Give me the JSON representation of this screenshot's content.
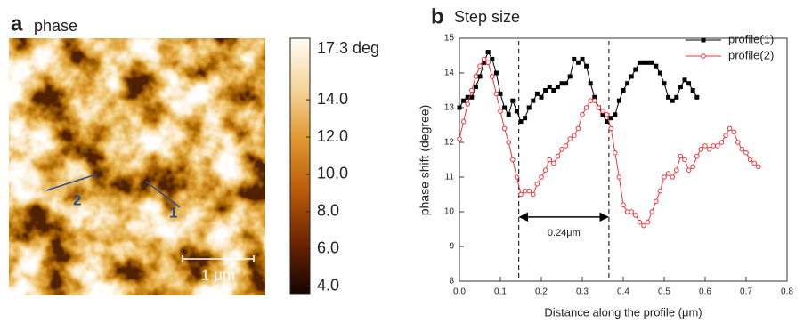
{
  "chart_data": [
    {
      "type": "image",
      "panel_label": "a",
      "title": "phase",
      "colormap": [
        "#160400",
        "#6e2400",
        "#b85a08",
        "#e0962e",
        "#f5d49a",
        "#fffdf5"
      ],
      "clim": [
        3.6,
        17.3
      ],
      "cticks": [
        {
          "value": 17.3,
          "label": "17.3 deg"
        },
        {
          "value": 14,
          "label": "14.0"
        },
        {
          "value": 12,
          "label": "12.0"
        },
        {
          "value": 10,
          "label": "10.0"
        },
        {
          "value": 8,
          "label": "8.0"
        },
        {
          "value": 6,
          "label": "6.0"
        },
        {
          "value": 4,
          "label": "4.0"
        }
      ],
      "annotations": [
        "1",
        "2"
      ],
      "scale_bar": "1 μm"
    },
    {
      "type": "line",
      "panel_label": "b",
      "title": "Step size",
      "x_label": "Distance along the profile (μm)",
      "y_label": "phase shift (degree)",
      "xlim": [
        0,
        0.8
      ],
      "ylim": [
        8,
        15
      ],
      "xticks": [
        {
          "value": 0,
          "label": "0.0"
        },
        0.1,
        0.2,
        0.3,
        0.4,
        0.5,
        0.6,
        0.7,
        0.8
      ],
      "yticks": [
        8,
        9,
        10,
        11,
        12,
        13,
        14,
        15
      ],
      "vlines": [
        0.145,
        0.365
      ],
      "annotation": "0.24μm",
      "legend": "upper right",
      "series": [
        {
          "name": "profile(1)",
          "color": "#000000",
          "marker": "square",
          "x": [
            0,
            0.01,
            0.02,
            0.03,
            0.04,
            0.05,
            0.06,
            0.07,
            0.08,
            0.09,
            0.1,
            0.11,
            0.12,
            0.13,
            0.14,
            0.15,
            0.16,
            0.17,
            0.18,
            0.19,
            0.2,
            0.21,
            0.22,
            0.23,
            0.24,
            0.25,
            0.26,
            0.27,
            0.28,
            0.29,
            0.3,
            0.31,
            0.32,
            0.33,
            0.34,
            0.35,
            0.36,
            0.37,
            0.38,
            0.39,
            0.4,
            0.41,
            0.42,
            0.43,
            0.44,
            0.45,
            0.46,
            0.47,
            0.48,
            0.49,
            0.5,
            0.51,
            0.52,
            0.53,
            0.54,
            0.55,
            0.56,
            0.57,
            0.58
          ],
          "values": [
            13.0,
            13.2,
            13.3,
            13.3,
            13.6,
            13.9,
            14.3,
            14.6,
            14.4,
            14.0,
            13.4,
            13.0,
            12.8,
            13.2,
            12.9,
            12.6,
            12.7,
            13.0,
            13.2,
            13.4,
            13.3,
            13.5,
            13.6,
            13.5,
            13.6,
            13.7,
            13.7,
            13.9,
            14.4,
            14.3,
            14.4,
            14.2,
            13.7,
            13.3,
            13.0,
            12.8,
            12.6,
            12.7,
            12.8,
            13.2,
            13.5,
            13.7,
            13.9,
            14.1,
            14.3,
            14.3,
            14.3,
            14.3,
            14.2,
            14.0,
            13.7,
            13.3,
            13.2,
            13.3,
            13.6,
            13.8,
            13.7,
            13.5,
            13.3
          ]
        },
        {
          "name": "profile(2)",
          "color": "#e8383d",
          "marker": "circle",
          "x": [
            0,
            0.01,
            0.02,
            0.03,
            0.04,
            0.05,
            0.06,
            0.07,
            0.08,
            0.09,
            0.1,
            0.11,
            0.12,
            0.13,
            0.14,
            0.15,
            0.16,
            0.17,
            0.18,
            0.19,
            0.2,
            0.21,
            0.22,
            0.23,
            0.24,
            0.25,
            0.26,
            0.27,
            0.28,
            0.29,
            0.3,
            0.31,
            0.32,
            0.33,
            0.34,
            0.35,
            0.36,
            0.37,
            0.38,
            0.39,
            0.4,
            0.41,
            0.42,
            0.43,
            0.44,
            0.45,
            0.46,
            0.47,
            0.48,
            0.49,
            0.5,
            0.51,
            0.52,
            0.53,
            0.54,
            0.55,
            0.56,
            0.57,
            0.58,
            0.59,
            0.6,
            0.61,
            0.62,
            0.63,
            0.64,
            0.65,
            0.66,
            0.67,
            0.68,
            0.69,
            0.7,
            0.71,
            0.72,
            0.73
          ],
          "values": [
            12.1,
            12.6,
            13.1,
            13.5,
            13.9,
            14.2,
            14.4,
            14.3,
            13.9,
            13.4,
            12.9,
            12.4,
            12.0,
            11.5,
            11.0,
            10.5,
            10.6,
            10.6,
            10.5,
            10.8,
            11.0,
            11.2,
            11.5,
            11.4,
            11.6,
            11.8,
            11.9,
            12.1,
            12.2,
            12.4,
            12.8,
            13.0,
            13.2,
            13.2,
            13.0,
            12.9,
            12.8,
            12.4,
            11.7,
            11.0,
            10.2,
            10.0,
            10.0,
            9.9,
            9.7,
            9.6,
            9.7,
            10.0,
            10.3,
            10.6,
            11.0,
            11.1,
            11.0,
            11.2,
            11.6,
            11.5,
            11.2,
            11.3,
            11.6,
            11.8,
            11.9,
            11.8,
            11.9,
            11.9,
            12.0,
            12.2,
            12.4,
            12.3,
            12.0,
            11.8,
            11.7,
            11.5,
            11.4,
            11.3
          ]
        }
      ]
    }
  ]
}
